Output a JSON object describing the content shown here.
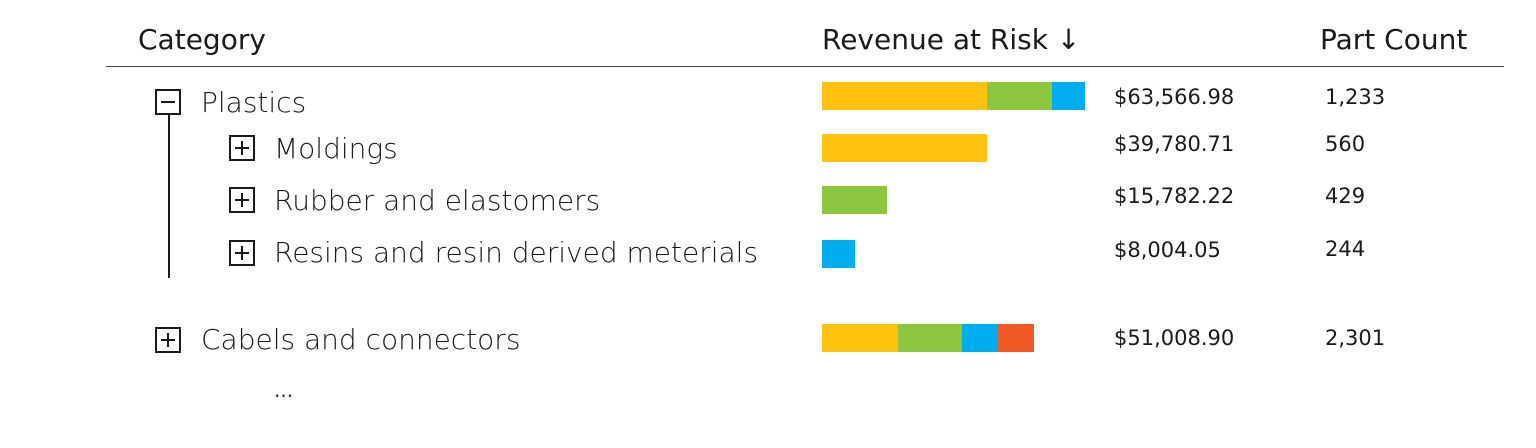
{
  "header": {
    "category": "Category",
    "revenue": "Revenue at Risk ↓",
    "part_count": "Part Count"
  },
  "colors": {
    "yellow": "#FFC20E",
    "green": "#8DC63F",
    "blue": "#00AEEF",
    "red": "#F15A24"
  },
  "rows": [
    {
      "label": "Plastics",
      "toggle": "collapse",
      "amount": "$63,566.98",
      "count": "1,233",
      "segments": [
        {
          "color": "#FFC20E",
          "value": 39780.71
        },
        {
          "color": "#8DC63F",
          "value": 15782.22
        },
        {
          "color": "#00AEEF",
          "value": 8004.05
        }
      ]
    },
    {
      "label": "Moldings",
      "toggle": "expand",
      "amount": "$39,780.71",
      "count": "560",
      "segments": [
        {
          "color": "#FFC20E",
          "value": 39780.71
        }
      ]
    },
    {
      "label": "Rubber and elastomers",
      "toggle": "expand",
      "amount": "$15,782.22",
      "count": "429",
      "segments": [
        {
          "color": "#8DC63F",
          "value": 15782.22
        }
      ]
    },
    {
      "label": "Resins and resin derived meterials",
      "toggle": "expand",
      "amount": "$8,004.05",
      "count": "244",
      "segments": [
        {
          "color": "#00AEEF",
          "value": 8004.05
        }
      ]
    },
    {
      "label": "Cabels and connectors",
      "toggle": "expand",
      "amount": "$51,008.90",
      "count": "2,301",
      "segments": [
        {
          "color": "#FFC20E",
          "value": 18300
        },
        {
          "color": "#8DC63F",
          "value": 15500
        },
        {
          "color": "#00AEEF",
          "value": 8600
        },
        {
          "color": "#F15A24",
          "value": 8608.9
        }
      ]
    }
  ],
  "more_indicator": "..."
}
